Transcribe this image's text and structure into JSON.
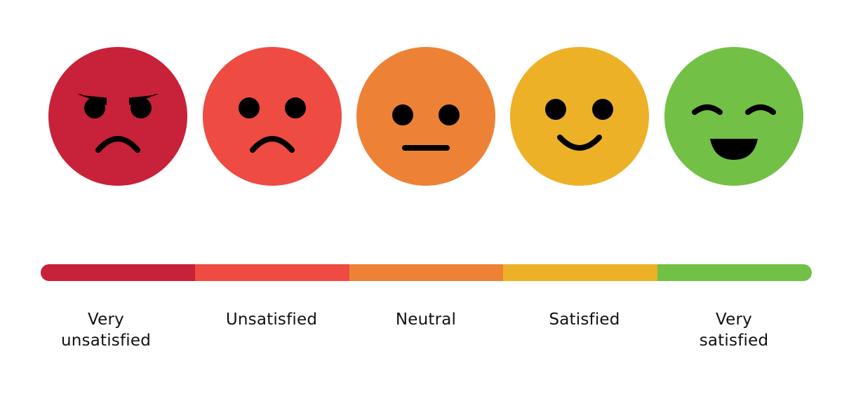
{
  "scale": {
    "options": [
      {
        "label_line1": "Very",
        "label_line2": "unsatisfied",
        "color": "#C8213A",
        "icon": "angry-face-icon"
      },
      {
        "label_line1": "Unsatisfied",
        "label_line2": "",
        "color": "#EE4B42",
        "icon": "sad-face-icon"
      },
      {
        "label_line1": "Neutral",
        "label_line2": "",
        "color": "#ED8237",
        "icon": "neutral-face-icon"
      },
      {
        "label_line1": "Satisfied",
        "label_line2": "",
        "color": "#EDB127",
        "icon": "smiling-face-icon"
      },
      {
        "label_line1": "Very",
        "label_line2": "satisfied",
        "color": "#72C046",
        "icon": "grinning-face-icon"
      }
    ]
  }
}
